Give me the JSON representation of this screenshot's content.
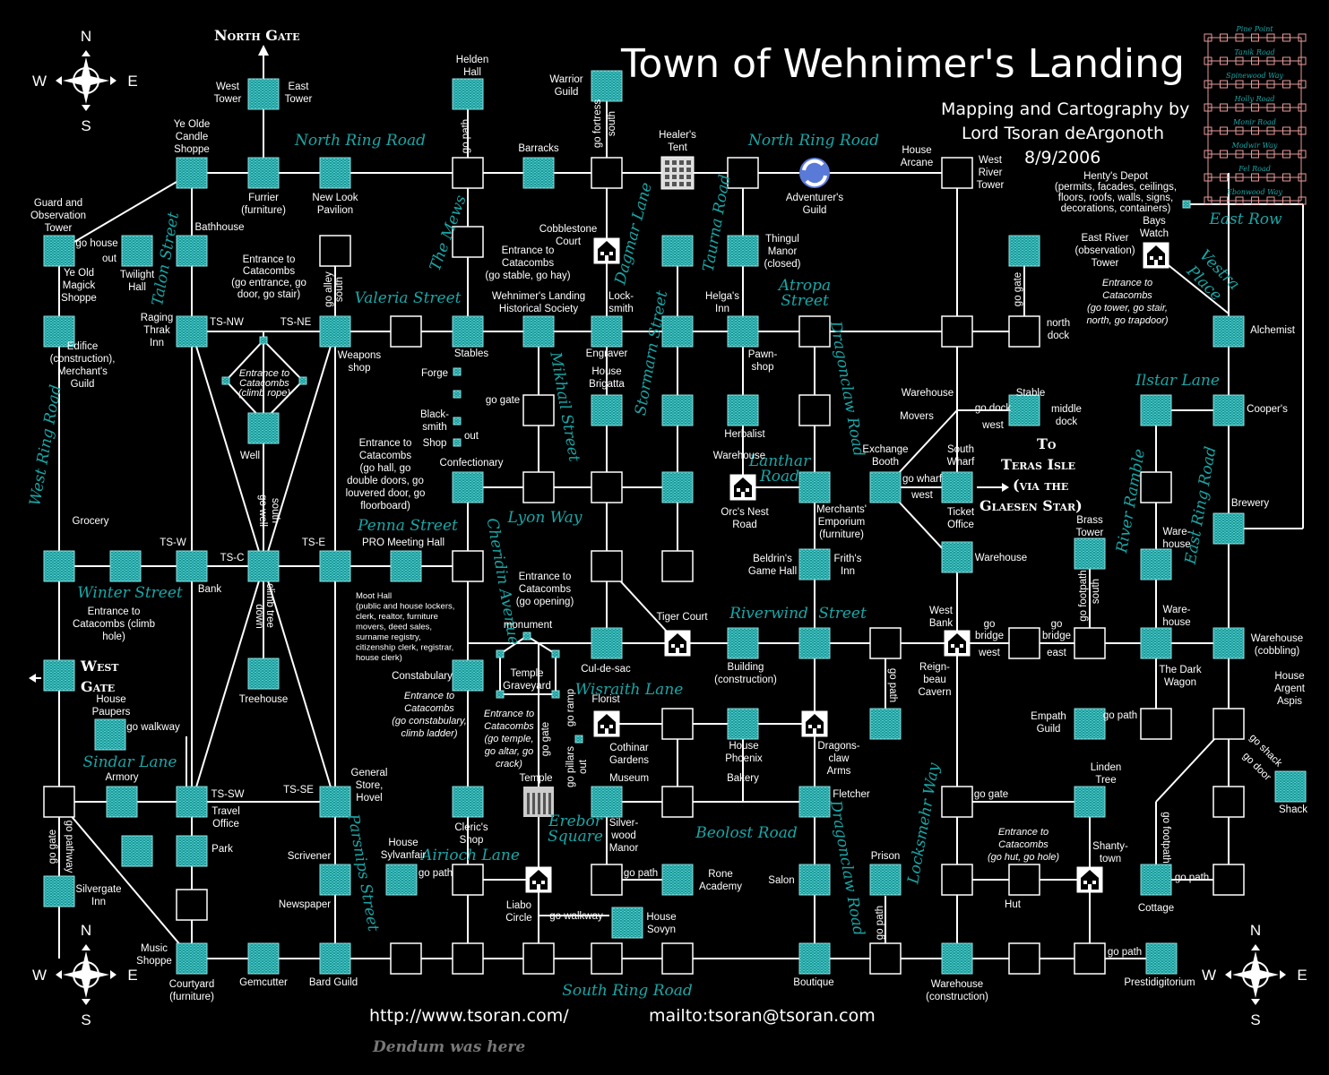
{
  "title": "Town of Wehnimer's Landing",
  "credits": [
    "Mapping and Cartography by",
    "Lord Tsoran deArgonoth",
    "8/9/2006"
  ],
  "footer": {
    "url": "http://www.tsoran.com/",
    "mail": "mailto:tsoran@tsoran.com",
    "note": "Dendum was here"
  },
  "compass": {
    "n": "N",
    "s": "S",
    "e": "E",
    "w": "W"
  },
  "gates": {
    "north": "North Gate",
    "west": [
      "West",
      "Gate"
    ],
    "teras": [
      "To",
      "Teras Isle",
      "(via the",
      "Glaesen Star)"
    ]
  },
  "minimap_roads": [
    "Pine Point",
    "Tanik Road",
    "Spinewood Way",
    "Holly Road",
    "Monir Road",
    "Modwir Way",
    "Fel Road",
    "Ebonwood Way"
  ],
  "minimap_title": "East Row",
  "roads": {
    "northring1": "North Ring Road",
    "northring2": "North Ring Road",
    "themews": "The Mews",
    "dagmar": "Dagmar Lane",
    "taurna": "Taurna Road",
    "talon": "Talon Street",
    "valeria": "Valeria Street",
    "atropa1": "Atropa",
    "atropa2": "Street",
    "stormarn": "Stormarn Street",
    "mikhail": "Mikhail Street",
    "dragonclaw1": "Dragonclaw Road",
    "lanthar1": "Lanthar",
    "lanthar2": "Road",
    "vestra1": "Vestra",
    "vestra2": "Place",
    "ilstar": "Ilstar Lane",
    "westring": "West Ring Road",
    "lyon": "Lyon Way",
    "penna": "Penna Street",
    "cheridin": "Cheridin Avenue",
    "winter": "Winter Street",
    "riverwind1": "Riverwind",
    "riverwind2": "Street",
    "riverramble": "River Ramble",
    "eastring": "East Ring Road",
    "wisraith": "Wisraith Lane",
    "sindar": "Sindar Lane",
    "locksmehr": "Locksmehr Way",
    "beolost": "Beolost Road",
    "dragonclaw2": "Dragonclaw Road",
    "parsnips": "Parsnips Street",
    "airioch": "Airioch Lane",
    "erebor1": "Erebor",
    "erebor2": "Square",
    "southring": "South Ring Road"
  },
  "labels": {
    "west_tower": [
      "West",
      "Tower"
    ],
    "east_tower": [
      "East",
      "Tower"
    ],
    "helden": [
      "Helden",
      "Hall"
    ],
    "warrior": [
      "Warrior",
      "Guild"
    ],
    "yeolde": [
      "Ye Olde",
      "Candle",
      "Shoppe"
    ],
    "furrier": [
      "Furrier",
      "(furniture)"
    ],
    "newlook": [
      "New Look",
      "Pavilion"
    ],
    "barracks": "Barracks",
    "healer": [
      "Healer's",
      "Tent"
    ],
    "adventurer": [
      "Adventurer's",
      "Guild"
    ],
    "house_arcane": [
      "House",
      "Arcane"
    ],
    "west_river": [
      "West",
      "River",
      "Tower"
    ],
    "henty": [
      "Henty's Depot",
      "(permits, facades, ceilings,",
      "floors, roofs, walls, signs,",
      "decorations, containers)"
    ],
    "guard": [
      "Guard and",
      "Observation",
      "Tower"
    ],
    "gohouse": "go house",
    "out1": "out",
    "yeold_magick": [
      "Ye Old",
      "Magick",
      "Shoppe"
    ],
    "twilight": [
      "Twilight",
      "Hall"
    ],
    "bathhouse": "Bathhouse",
    "entrance_catacombs1": [
      "Entrance to",
      "Catacombs",
      "(go entrance, go",
      "door, go stair)"
    ],
    "south_alley": "south",
    "go_alley": "go alley",
    "cobblestone": [
      "Cobblestone",
      "Court"
    ],
    "entrance_catacombs2": [
      "Entrance to",
      "Catacombs",
      "(go stable, go hay)"
    ],
    "thingul": [
      "Thingul",
      "Manor",
      "(closed)"
    ],
    "bays_watch": [
      "Bays",
      "Watch"
    ],
    "east_river": [
      "East River",
      "(observation)",
      "Tower"
    ],
    "entrance_catacombs3": [
      "Entrance to",
      "Catacombs",
      "(go tower, go stair,",
      "north, go trapdoor)"
    ],
    "go_gate_n": "go gate",
    "north_dock": [
      "north",
      "dock"
    ],
    "raging": [
      "Raging",
      "Thrak",
      "Inn"
    ],
    "tsnw": "TS-NW",
    "tsne": "TS-NE",
    "weapons": [
      "Weapons",
      "shop"
    ],
    "stables": "Stables",
    "historical": [
      "Wehnimer's Landing",
      "Historical Society"
    ],
    "locksmith": [
      "Lock-",
      "smith"
    ],
    "helgas": [
      "Helga's",
      "Inn"
    ],
    "alchemist": "Alchemist",
    "edifice": [
      "Edifice",
      "(construction),",
      "Merchant's",
      "Guild"
    ],
    "entrance_climb": [
      "Entrance to",
      "Catacombs",
      "(climb rope)"
    ],
    "engraver": "Engraver",
    "house_brigatta": [
      "House",
      "Brigatta"
    ],
    "pawnshop": [
      "Pawn-",
      "shop"
    ],
    "forge": "Forge",
    "go_gate_forge": "go gate",
    "blacksmith": [
      "Black-",
      "smith"
    ],
    "shop": "Shop",
    "out2": "out",
    "herbalist": "Herbalist",
    "warehouse_stormarn": "Warehouse",
    "warehouse_movers": "Warehouse",
    "movers": "Movers",
    "go_dock": "go dock",
    "west1": "west",
    "stable": "Stable",
    "middle_dock": [
      "middle",
      "dock"
    ],
    "coopers": "Cooper's",
    "well": "Well",
    "entrance_catacombs4": [
      "Entrance to",
      "Catacombs",
      "(go hall, go",
      "double doors, go",
      "louvered door, go",
      "floorboard)"
    ],
    "confectionary": "Confectionary",
    "exchange": [
      "Exchange",
      "Booth"
    ],
    "south_wharf": [
      "South",
      "Wharf"
    ],
    "go_wharf": "go wharf",
    "west2": "west",
    "ticket": [
      "Ticket",
      "Office"
    ],
    "orcs_nest": [
      "Orc's Nest",
      "Road"
    ],
    "merchants_emp": [
      "Merchants'",
      "Emporium",
      "(furniture)"
    ],
    "brewery": "Brewery",
    "brass_tower": [
      "Brass",
      "Tower"
    ],
    "grocery": "Grocery",
    "tsw": "TS-W",
    "tsc": "TS-C",
    "tse": "TS-E",
    "pro_meeting": "PRO Meeting Hall",
    "go_well": "go well",
    "south_well": "south",
    "bank": "Bank",
    "beldrins": [
      "Beldrin's",
      "Game Hall"
    ],
    "friths": [
      "Frith's",
      "Inn"
    ],
    "warehouse_ticket": "Warehouse",
    "warehouse_ramble": [
      "Ware-",
      "house"
    ],
    "entrance_opening": [
      "Entrance to",
      "Catacombs",
      "(go opening)"
    ],
    "moot_hall": [
      "Moot Hall",
      "(public and house lockers,",
      "clerk, realtor, furniture",
      "movers, deed sales,",
      "surname registry,",
      "citizenship clerk,  registrar,",
      "house clerk)"
    ],
    "entrance_climbhole": [
      "Entrance to",
      "Catacombs (climb",
      "hole)"
    ],
    "monument": "monument",
    "tiger_court": "Tiger Court",
    "climb_tree": "climb tree",
    "down": "down",
    "west_bank": [
      "West",
      "Bank"
    ],
    "go_bridge1": [
      "go",
      "bridge"
    ],
    "west3": "west",
    "go_bridge2": [
      "go",
      "bridge"
    ],
    "east1": "east",
    "go_footpath1": "go footpath",
    "south_footpath": "south",
    "warehouse_riverwind": [
      "Ware-",
      "house"
    ],
    "warehouse_cobbling": [
      "Warehouse",
      "(cobbling)"
    ],
    "temple_graveyard": [
      "Temple",
      "Graveyard"
    ],
    "cul_de_sac": "Cul-de-sac",
    "building": [
      "Building",
      "(construction)"
    ],
    "reignbeau": [
      "Reign-",
      "beau",
      "Cavern"
    ],
    "dark_wagon": [
      "The Dark",
      "Wagon"
    ],
    "house_argent": [
      "House",
      "Argent",
      "Aspis"
    ],
    "treehouse": "Treehouse",
    "constabulary": "Constabulary",
    "entrance_constab": [
      "Entrance to",
      "Catacombs",
      "(go constabulary,",
      "climb ladder)"
    ],
    "entrance_temple": [
      "Entrance to",
      "Catacombs",
      "(go temple,",
      "go altar, go",
      "crack)"
    ],
    "go_ramp": "go ramp",
    "florist": "Florist",
    "go_path_rw": "go path",
    "house_paupers": [
      "House",
      "Paupers"
    ],
    "go_walkway1": "go walkway",
    "cothinar": [
      "Cothinar",
      "Gardens"
    ],
    "house_phoenix": [
      "House",
      "Phoenix"
    ],
    "dragonsclaw_arms": [
      "Dragons-",
      "claw",
      "Arms"
    ],
    "empath": [
      "Empath",
      "Guild"
    ],
    "go_path_emp": "go path",
    "go_shack": "go shack",
    "go_door": "go door",
    "shack": "Shack",
    "armory": "Armory",
    "general_store": [
      "General",
      "Store,",
      "Hovel"
    ],
    "go_gate_temple": "go gate",
    "go_pillars": "go pillars",
    "out3": "out",
    "temple": "Temple",
    "museum": "Museum",
    "bakery": "Bakery",
    "fletcher": "Fletcher",
    "linden": [
      "Linden",
      "Tree"
    ],
    "tssw": "TS-SW",
    "tsse": "TS-SE",
    "travel_office": [
      "Travel",
      "Office"
    ],
    "clerics": [
      "Cleric's",
      "Shop"
    ],
    "silverwood": [
      "Silver-",
      "wood",
      "Manor"
    ],
    "go_gate_lock": "go gate",
    "entrance_hut": [
      "Entrance to",
      "Catacombs",
      "(go hut, go hole)"
    ],
    "park": "Park",
    "house_sylvanfair": [
      "House",
      "Sylvanfair"
    ],
    "go_path_syl": "go path",
    "go_path_rone": "go path",
    "rone": [
      "Rone",
      "Academy"
    ],
    "salon": "Salon",
    "prison": "Prison",
    "shantytown": [
      "Shanty-",
      "town"
    ],
    "go_path_cottage": "go path",
    "go_footpath2": "go footpath",
    "go_gate_west": "go gate",
    "go_pathway": "go pathway",
    "silvergate": [
      "Silvergate",
      "Inn"
    ],
    "scrivener": "Scrivener",
    "newspaper": "Newspaper",
    "liabo": [
      "Liabo",
      "Circle"
    ],
    "go_walkway2": "go walkway",
    "house_sovyn": [
      "House",
      "Sovyn"
    ],
    "hut": "Hut",
    "cottage": "Cottage",
    "go_path_pres": "go path",
    "go_path_prison": "go path",
    "go_path_bldg": "go path",
    "music": [
      "Music",
      "Shoppe"
    ],
    "courtyard": [
      "Courtyard",
      "(furniture)"
    ],
    "gemcutter": "Gemcutter",
    "bard": "Bard Guild",
    "boutique": "Boutique",
    "warehouse_constr": [
      "Warehouse",
      "(construction)"
    ],
    "prestidigitorium": "Prestidigitorium",
    "go_path_helden": "go path",
    "go_fortress": "go fortress",
    "south_fortress": "south"
  },
  "colors": {
    "teal": "#1aa6a6",
    "room_fill": "#1c9a9a",
    "room_stripe": "#40c8c8",
    "minimap": "#e89a9a"
  }
}
